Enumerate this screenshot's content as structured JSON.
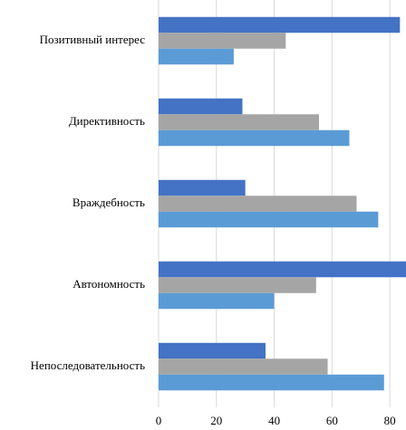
{
  "chart_data": {
    "type": "hbar",
    "categories": [
      "Позитивный интерес",
      "Директивность",
      "Враждебность",
      "Автономность",
      "Непоследовательность"
    ],
    "series": [
      {
        "color": "#4472c4",
        "values": [
          83.5,
          29,
          30,
          87,
          37
        ]
      },
      {
        "color": "#a5a5a5",
        "values": [
          44,
          55.5,
          68.5,
          54.5,
          58.5
        ]
      },
      {
        "color": "#5b9bd5",
        "values": [
          26,
          66,
          76,
          40,
          78
        ]
      }
    ],
    "xlim": [
      0,
      85.6
    ],
    "xticks": [
      0,
      20,
      40,
      60,
      80
    ],
    "grid": true
  }
}
